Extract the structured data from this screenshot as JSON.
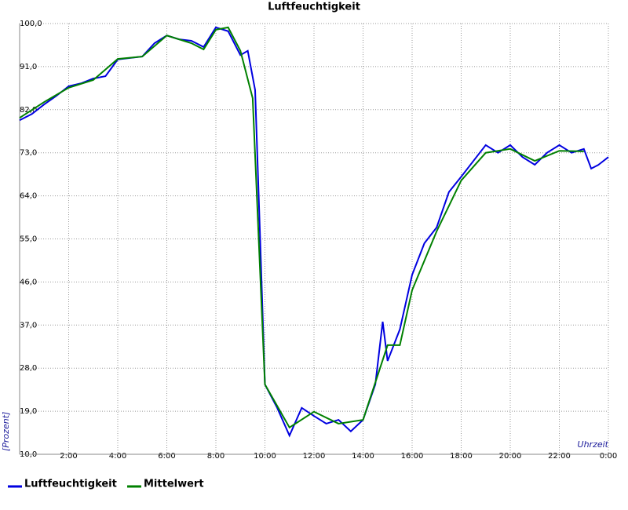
{
  "chart_data": {
    "type": "line",
    "title": "Luftfeuchtigkeit",
    "x_label": "Uhrzeit",
    "y_label": "[Prozent]",
    "xlim": [
      0,
      24
    ],
    "ylim": [
      10,
      100
    ],
    "grid": true,
    "legend": "bottom",
    "xticks": [
      {
        "value": 2,
        "label": "2:00"
      },
      {
        "value": 4,
        "label": "4:00"
      },
      {
        "value": 6,
        "label": "6:00"
      },
      {
        "value": 8,
        "label": "8:00"
      },
      {
        "value": 10,
        "label": "10:00"
      },
      {
        "value": 12,
        "label": "12:00"
      },
      {
        "value": 14,
        "label": "14:00"
      },
      {
        "value": 16,
        "label": "16:00"
      },
      {
        "value": 18,
        "label": "18:00"
      },
      {
        "value": 20,
        "label": "20:00"
      },
      {
        "value": 22,
        "label": "22:00"
      },
      {
        "value": 24,
        "label": "0:00"
      }
    ],
    "yticks": [
      {
        "value": 10,
        "label": "10,0"
      },
      {
        "value": 19,
        "label": "19,0"
      },
      {
        "value": 28,
        "label": "28,0"
      },
      {
        "value": 37,
        "label": "37,0"
      },
      {
        "value": 46,
        "label": "46,0"
      },
      {
        "value": 55,
        "label": "55,0"
      },
      {
        "value": 64,
        "label": "64,0"
      },
      {
        "value": 73,
        "label": "73,0"
      },
      {
        "value": 82,
        "label": "82,0"
      },
      {
        "value": 91,
        "label": "91,0"
      },
      {
        "value": 100,
        "label": "100,0"
      }
    ],
    "series": [
      {
        "name": "Luftfeuchtigkeit",
        "color": "#0000e0",
        "x": [
          0,
          0.5,
          1,
          1.5,
          2,
          2.5,
          3,
          3.5,
          4,
          4.5,
          5,
          5.5,
          6,
          6.5,
          7,
          7.5,
          8,
          8.5,
          9,
          9.3,
          9.6,
          9.8,
          10,
          10.5,
          11,
          11.5,
          12,
          12.5,
          13,
          13.5,
          14,
          14.5,
          14.8,
          15,
          15.5,
          16,
          16.5,
          17,
          17.5,
          18,
          18.5,
          19,
          19.5,
          20,
          20.5,
          21,
          21.5,
          22,
          22.5,
          23,
          23.3,
          23.6,
          24
        ],
        "values": [
          79.8,
          81.1,
          83.1,
          84.9,
          86.9,
          87.5,
          88.5,
          89.0,
          92.5,
          92.8,
          93.1,
          95.9,
          97.5,
          96.7,
          96.4,
          95.1,
          99.2,
          98.4,
          93.4,
          94.3,
          86.1,
          55.7,
          24.6,
          19.7,
          13.9,
          19.7,
          18.0,
          16.4,
          17.2,
          14.8,
          17.2,
          24.6,
          37.7,
          29.5,
          36.1,
          47.5,
          54.1,
          57.4,
          64.8,
          68.0,
          71.3,
          74.6,
          73.0,
          74.6,
          72.1,
          70.5,
          73.0,
          74.6,
          73.0,
          73.8,
          69.7,
          70.5,
          72.1
        ]
      },
      {
        "name": "Mittelwert",
        "color": "#008000",
        "x": [
          0,
          1,
          2,
          3,
          4,
          5,
          6,
          7,
          7.5,
          8,
          8.5,
          9,
          9.5,
          10,
          11,
          12,
          13,
          14,
          15,
          15.5,
          16,
          17,
          18,
          19,
          20,
          21,
          22,
          23
        ],
        "values": [
          80.3,
          83.6,
          86.6,
          88.2,
          92.6,
          93.1,
          97.5,
          95.9,
          94.6,
          98.7,
          99.2,
          94.3,
          84.4,
          24.6,
          15.6,
          18.9,
          16.4,
          17.2,
          32.8,
          32.8,
          44.3,
          56.6,
          67.2,
          73.0,
          73.8,
          71.3,
          73.4,
          73.3
        ]
      }
    ]
  }
}
